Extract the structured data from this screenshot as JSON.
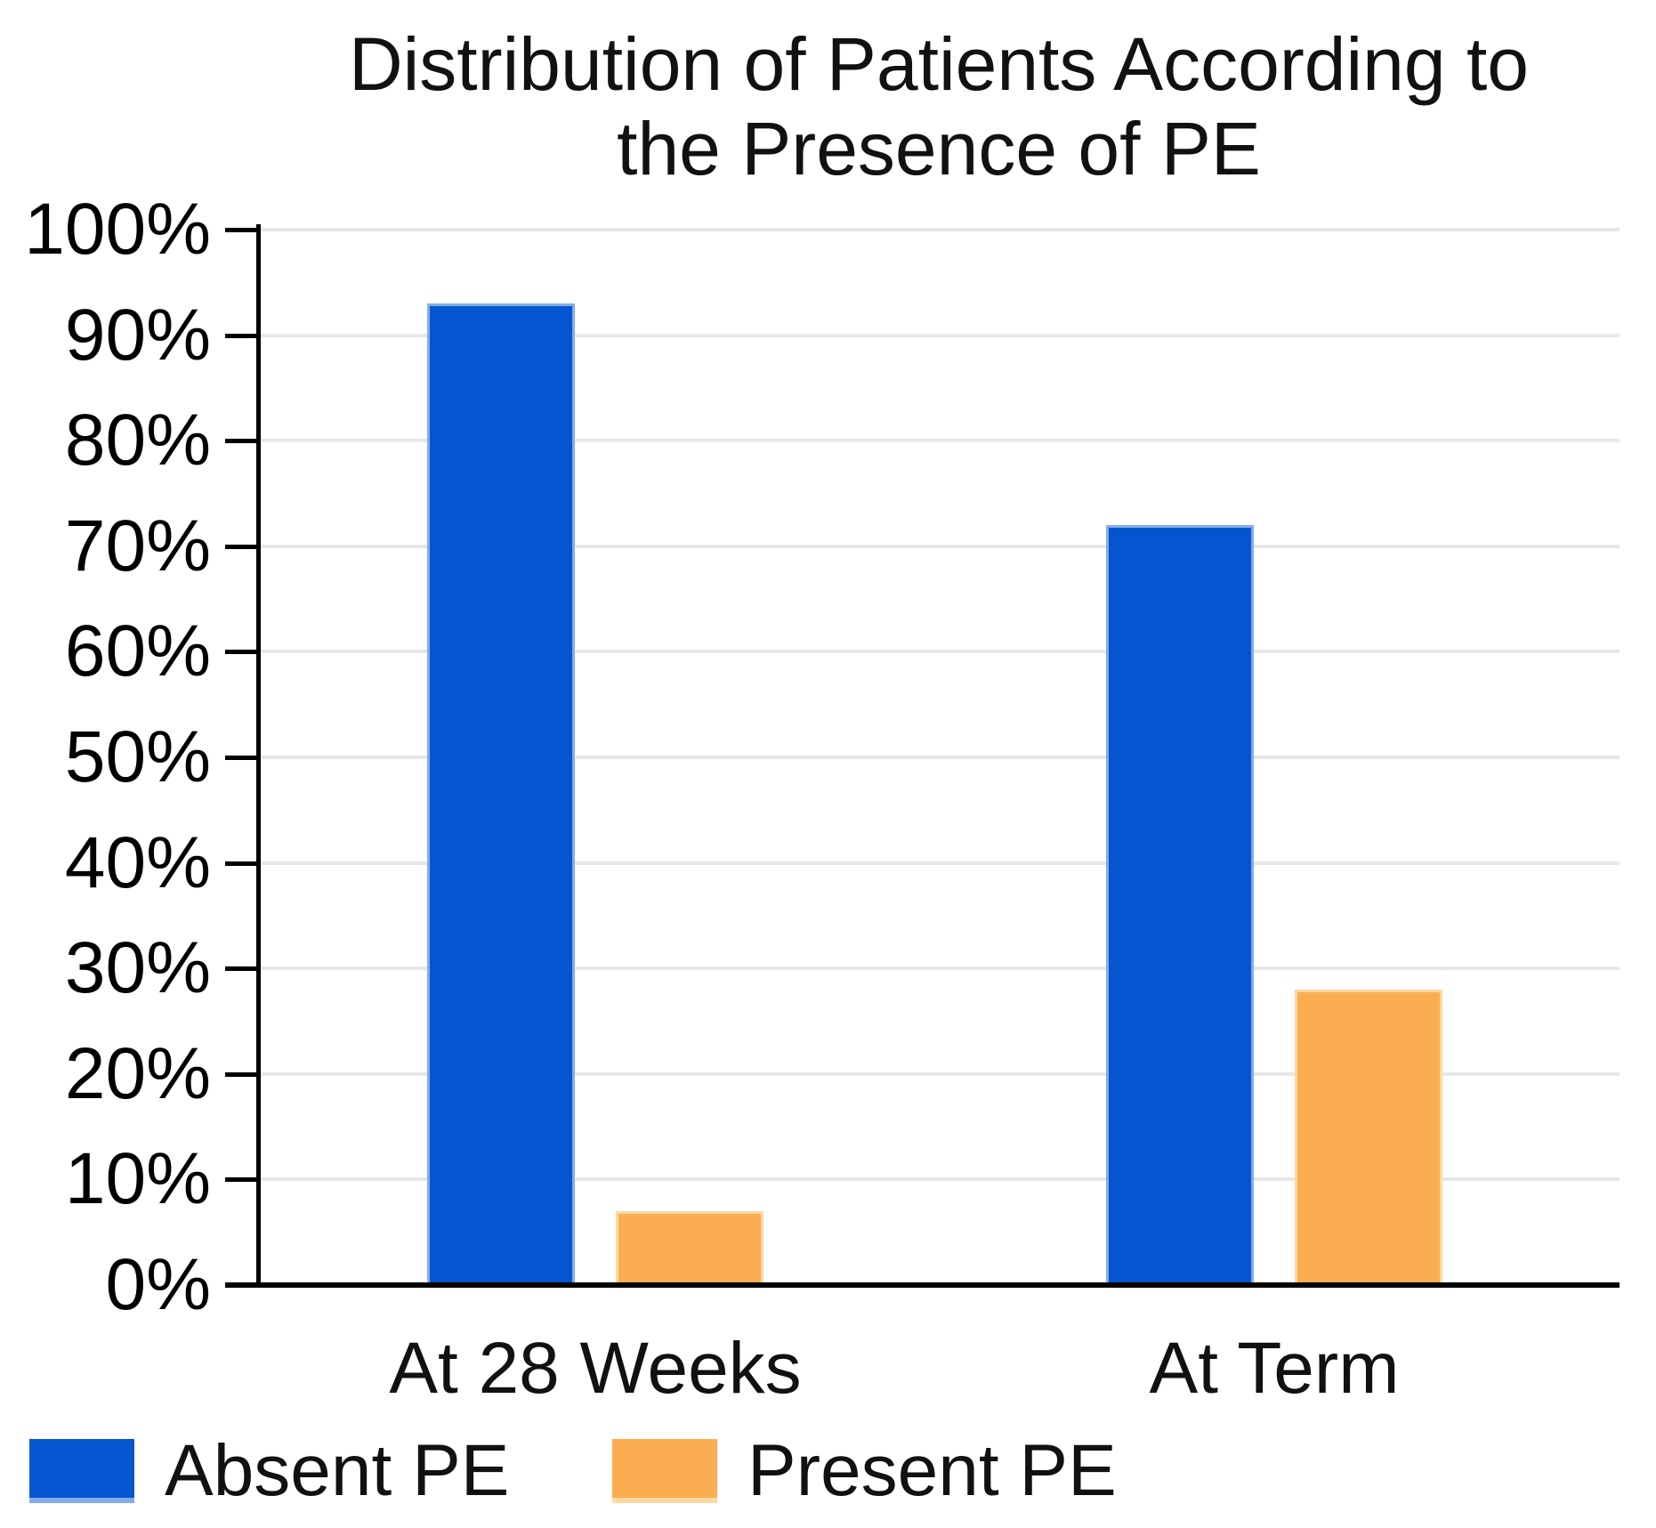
{
  "chart_data": {
    "type": "bar",
    "title": "Distribution of Patients According to the Presence of PE",
    "title_lines": [
      "Distribution of Patients According to",
      "the Presence of PE"
    ],
    "categories": [
      "At 28 Weeks",
      "At Term"
    ],
    "series": [
      {
        "name": "Absent PE",
        "color": "#0356cf",
        "edge_color": "#85ace8",
        "values": [
          93,
          72
        ]
      },
      {
        "name": "Present PE",
        "color": "#fbae51",
        "edge_color": "#fdd8a1",
        "values": [
          7,
          28
        ]
      }
    ],
    "xlabel": "",
    "ylabel": "",
    "ylim": [
      0,
      100
    ],
    "ytick_step": 10,
    "ytick_labels": [
      "0%",
      "10%",
      "20%",
      "30%",
      "40%",
      "50%",
      "60%",
      "70%",
      "80%",
      "90%",
      "100%"
    ],
    "grid": true,
    "gridline_color": "#e7e7e7",
    "axis_color": "#000000",
    "background": "#ffffff",
    "legend_position": "bottom-left"
  }
}
